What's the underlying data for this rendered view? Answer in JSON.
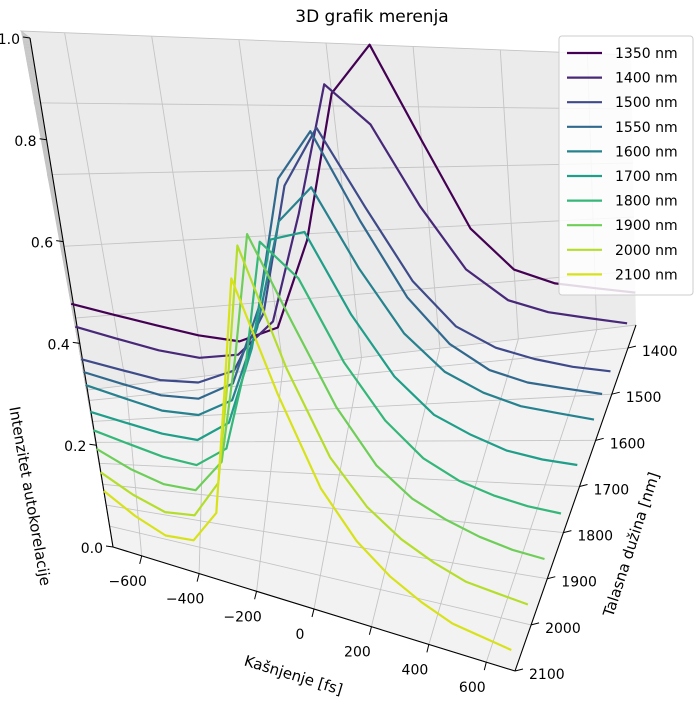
{
  "chart_data": {
    "type": "line",
    "projection": "3d",
    "title": "3D grafik merenja",
    "xlabel": "Kašnjenje [fs]",
    "ylabel": "Talasna dužina [nm]",
    "zlabel": "Intenzitet autokorelacije",
    "xlim": [
      -700,
      700
    ],
    "ylim": [
      1350,
      2100
    ],
    "zlim": [
      0,
      1.0
    ],
    "x_ticks": [
      "−600",
      "−400",
      "−200",
      "0",
      "200",
      "400",
      "600"
    ],
    "y_ticks": [
      "1400",
      "1500",
      "1600",
      "1700",
      "1800",
      "1900",
      "2000",
      "2100"
    ],
    "z_ticks": [
      "0.0",
      "0.2",
      "0.4",
      "0.6",
      "0.8",
      "1.0"
    ],
    "grid": true,
    "legend_position": "top-right",
    "x": [
      -700,
      -600,
      -500,
      -400,
      -300,
      -200,
      -100,
      0,
      100,
      200,
      300,
      400,
      500,
      600,
      700
    ],
    "series": [
      {
        "name": "1350 nm",
        "wavelength": 1350,
        "color": "#440154",
        "values": [
          0.24,
          0.2,
          0.16,
          0.12,
          0.09,
          0.12,
          0.38,
          0.84,
          1.0,
          0.69,
          0.39,
          0.24,
          0.18,
          0.15,
          0.12
        ]
      },
      {
        "name": "1400 nm",
        "wavelength": 1400,
        "color": "#482878",
        "values": [
          0.2,
          0.16,
          0.12,
          0.09,
          0.09,
          0.18,
          0.5,
          0.9,
          0.78,
          0.52,
          0.31,
          0.2,
          0.15,
          0.12,
          0.09
        ]
      },
      {
        "name": "1500 nm",
        "wavelength": 1500,
        "color": "#3e4a89",
        "values": [
          0.16,
          0.13,
          0.1,
          0.09,
          0.12,
          0.28,
          0.65,
          0.83,
          0.6,
          0.38,
          0.24,
          0.17,
          0.13,
          0.1,
          0.08
        ]
      },
      {
        "name": "1550 nm",
        "wavelength": 1550,
        "color": "#31688e",
        "values": [
          0.15,
          0.12,
          0.09,
          0.08,
          0.12,
          0.33,
          0.7,
          0.85,
          0.6,
          0.38,
          0.24,
          0.16,
          0.12,
          0.1,
          0.08
        ]
      },
      {
        "name": "1600 nm",
        "wavelength": 1600,
        "color": "#26828e",
        "values": [
          0.14,
          0.11,
          0.08,
          0.07,
          0.11,
          0.31,
          0.61,
          0.72,
          0.5,
          0.32,
          0.21,
          0.15,
          0.11,
          0.09,
          0.07
        ]
      },
      {
        "name": "1700 nm",
        "wavelength": 1700,
        "color": "#1f9e89",
        "values": [
          0.12,
          0.1,
          0.08,
          0.07,
          0.12,
          0.32,
          0.62,
          0.66,
          0.45,
          0.29,
          0.19,
          0.14,
          0.1,
          0.08,
          0.07
        ]
      },
      {
        "name": "1800 nm",
        "wavelength": 1800,
        "color": "#35b779",
        "values": [
          0.12,
          0.1,
          0.08,
          0.07,
          0.12,
          0.34,
          0.67,
          0.6,
          0.4,
          0.26,
          0.17,
          0.12,
          0.09,
          0.07,
          0.06
        ]
      },
      {
        "name": "1900 nm",
        "wavelength": 1900,
        "color": "#6ece58",
        "values": [
          0.12,
          0.09,
          0.07,
          0.07,
          0.15,
          0.42,
          0.74,
          0.55,
          0.36,
          0.23,
          0.16,
          0.12,
          0.09,
          0.07,
          0.06
        ]
      },
      {
        "name": "2000 nm",
        "wavelength": 2000,
        "color": "#b5de2b",
        "values": [
          0.11,
          0.08,
          0.06,
          0.07,
          0.16,
          0.44,
          0.76,
          0.5,
          0.31,
          0.21,
          0.15,
          0.11,
          0.08,
          0.07,
          0.06
        ]
      },
      {
        "name": "2100 nm",
        "wavelength": 2100,
        "color": "#d8e219",
        "values": [
          0.11,
          0.08,
          0.06,
          0.07,
          0.15,
          0.43,
          0.73,
          0.5,
          0.31,
          0.21,
          0.15,
          0.11,
          0.08,
          0.07,
          0.06
        ]
      }
    ]
  }
}
